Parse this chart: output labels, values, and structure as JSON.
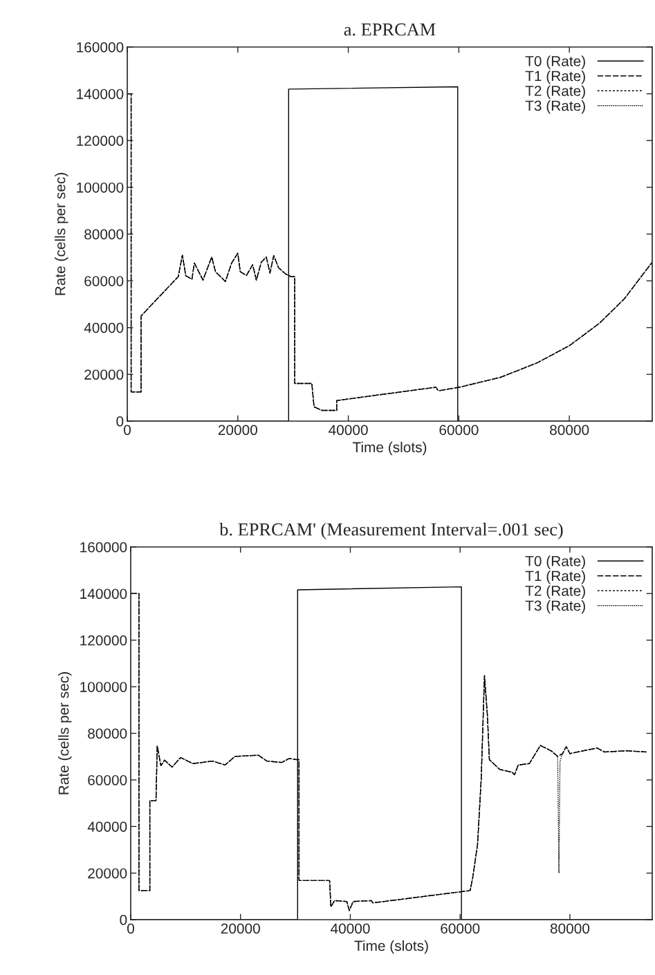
{
  "chart_data": [
    {
      "type": "line",
      "title": "a. EPRCAM",
      "xlabel": "Time (slots)",
      "ylabel": "Rate (cells per sec)",
      "xlim": [
        0,
        95000
      ],
      "ylim": [
        0,
        160000
      ],
      "xticks": [
        0,
        20000,
        40000,
        60000,
        80000
      ],
      "yticks": [
        0,
        20000,
        40000,
        60000,
        80000,
        100000,
        120000,
        140000,
        160000
      ],
      "legend": "top right",
      "grid": false,
      "series": [
        {
          "name": "T0 (Rate)",
          "color": "#000000",
          "line_style": "solid",
          "x": [
            0,
            29200,
            29200,
            59800,
            59800,
            95000
          ],
          "values": [
            0,
            0,
            142000,
            143000,
            0,
            0
          ]
        },
        {
          "name": "T1 (Rate)",
          "color": "#000000",
          "line_style": "dashed",
          "x": [
            0,
            700,
            700,
            2500,
            2500,
            9230,
            9980,
            10580,
            11700,
            12150,
            13700,
            15290,
            15960,
            17760,
            18880,
            20000,
            20450,
            21570,
            22690,
            23360,
            24260,
            25160,
            25830,
            26500,
            27400,
            28750,
            29650,
            30300,
            30300,
            33400,
            33800,
            35200,
            37900,
            37900,
            55850,
            56300,
            60100,
            67510,
            74250,
            80080,
            85470,
            89950,
            95000
          ],
          "values": [
            140000,
            140000,
            12500,
            12500,
            45000,
            61800,
            71000,
            62200,
            60700,
            67600,
            60300,
            70200,
            63900,
            59700,
            67600,
            71800,
            63900,
            62300,
            66900,
            60300,
            68000,
            70200,
            63300,
            70800,
            65500,
            62800,
            61800,
            61800,
            16100,
            16100,
            6100,
            4600,
            4600,
            8800,
            14500,
            13000,
            14500,
            18700,
            25000,
            32400,
            41900,
            52300,
            68000
          ]
        },
        {
          "name": "T2 (Rate)",
          "color": "#000000",
          "line_style": "dotted",
          "x": [
            0,
            700,
            700,
            2500,
            2500,
            9230,
            9980,
            10580,
            11700,
            12150,
            13700,
            15290,
            15960,
            17760,
            18880,
            20000,
            20450,
            21570,
            22690,
            23360,
            24260,
            25160,
            25830,
            26500,
            27400,
            28750,
            29650,
            30300,
            30300,
            33400,
            33800,
            35200,
            37900,
            37900,
            55850,
            56300,
            60100,
            67510,
            74250,
            80080,
            85470,
            89950,
            95000
          ],
          "values": [
            140000,
            140000,
            12500,
            12500,
            45000,
            61800,
            71000,
            62200,
            60700,
            67600,
            60300,
            70200,
            63900,
            59700,
            67600,
            71800,
            63900,
            62300,
            66900,
            60300,
            68000,
            70200,
            63300,
            70800,
            65500,
            62800,
            61800,
            61800,
            16100,
            16100,
            6100,
            4600,
            4600,
            8800,
            14500,
            13000,
            14500,
            18700,
            25000,
            32400,
            41900,
            52300,
            68000
          ]
        },
        {
          "name": "T3 (Rate)",
          "color": "#000000",
          "line_style": "densely dotted",
          "x": [
            0,
            700,
            700,
            2500,
            2500,
            9230,
            9980,
            10580,
            11700,
            12150,
            13700,
            15290,
            15960,
            17760,
            18880,
            20000,
            20450,
            21570,
            22690,
            23360,
            24260,
            25160,
            25830,
            26500,
            27400,
            28750,
            29650,
            30300,
            30300,
            33400,
            33800,
            35200,
            37900,
            37900,
            55850,
            56300,
            60100,
            67510,
            74250,
            80080,
            85470,
            89950,
            95000
          ],
          "values": [
            140000,
            140000,
            12500,
            12500,
            45000,
            61800,
            71000,
            62200,
            60700,
            67600,
            60300,
            70200,
            63900,
            59700,
            67600,
            71800,
            63900,
            62300,
            66900,
            60300,
            68000,
            70200,
            63300,
            70800,
            65500,
            62800,
            61800,
            61800,
            16100,
            16100,
            6100,
            4600,
            4600,
            8800,
            14500,
            13000,
            14500,
            18700,
            25000,
            32400,
            41900,
            52300,
            68000
          ]
        }
      ]
    },
    {
      "type": "line",
      "title": "b. EPRCAM' (Measurement Interval=.001 sec)",
      "xlabel": "Time (slots)",
      "ylabel": "Rate (cells per sec)",
      "xlim": [
        0,
        95000
      ],
      "ylim": [
        0,
        160000
      ],
      "xticks": [
        0,
        20000,
        40000,
        60000,
        80000
      ],
      "yticks": [
        0,
        20000,
        40000,
        60000,
        80000,
        100000,
        120000,
        140000,
        160000
      ],
      "legend": "top right",
      "grid": false,
      "series": [
        {
          "name": "T0 (Rate)",
          "color": "#000000",
          "line_style": "solid",
          "x": [
            0,
            30400,
            30400,
            60250,
            60250,
            95000
          ],
          "values": [
            0,
            0,
            141600,
            142900,
            0,
            0
          ]
        },
        {
          "name": "T1 (Rate)",
          "color": "#000000",
          "line_style": "dashed",
          "x": [
            0,
            1500,
            1500,
            3480,
            3480,
            4600,
            4830,
            5500,
            6170,
            7520,
            9090,
            11340,
            14930,
            17180,
            19000,
            23240,
            24800,
            27510,
            28860,
            30210,
            30660,
            30660,
            36230,
            36460,
            37130,
            39370,
            39820,
            40500,
            43860,
            44080,
            61830,
            62290,
            63180,
            63850,
            64440,
            64980,
            65330,
            67220,
            69470,
            69920,
            70590,
            72610,
            74630,
            76650,
            77770,
            78660,
            79330,
            80000,
            84940,
            86290,
            90330,
            93920
          ],
          "values": [
            140000,
            140000,
            12500,
            12500,
            51100,
            51100,
            74600,
            66100,
            68500,
            65500,
            69600,
            67000,
            68100,
            66400,
            70100,
            70600,
            68100,
            67500,
            69200,
            68700,
            68700,
            16800,
            16800,
            5500,
            8200,
            7800,
            3900,
            7800,
            8200,
            7200,
            12500,
            17900,
            32300,
            60700,
            104700,
            87500,
            68700,
            64500,
            63300,
            62200,
            66400,
            67000,
            74800,
            72400,
            70100,
            71300,
            74300,
            71300,
            73700,
            72000,
            72500,
            72000
          ]
        },
        {
          "name": "T2 (Rate)",
          "color": "#000000",
          "line_style": "dotted",
          "x": [
            0,
            1500,
            1500,
            3480,
            3480,
            4600,
            4830,
            5500,
            6170,
            7520,
            9090,
            11340,
            14930,
            17180,
            19000,
            23240,
            24800,
            27510,
            28860,
            30210,
            30660,
            30660,
            36230,
            36460,
            37130,
            39370,
            39820,
            40500,
            43860,
            44080,
            61830,
            62290,
            63180,
            63850,
            64440,
            64980,
            65330,
            67220,
            69470,
            69920,
            70590,
            72610,
            74630,
            76650,
            77770,
            78660,
            79330,
            80000,
            84940,
            86290,
            90330,
            93920
          ],
          "values": [
            140000,
            140000,
            12500,
            12500,
            51100,
            51100,
            74600,
            66100,
            68500,
            65500,
            69600,
            67000,
            68100,
            66400,
            70100,
            70600,
            68100,
            67500,
            69200,
            68700,
            68700,
            16800,
            16800,
            5500,
            8200,
            7800,
            3900,
            7800,
            8200,
            7200,
            12500,
            17900,
            32300,
            60700,
            104700,
            87500,
            68700,
            64500,
            63300,
            62200,
            66400,
            67000,
            74800,
            72400,
            70100,
            71300,
            74300,
            71300,
            73700,
            72000,
            72500,
            72000
          ]
        },
        {
          "name": "T3 (Rate)",
          "color": "#000000",
          "line_style": "densely dotted",
          "x": [
            0,
            1500,
            1500,
            3480,
            3480,
            4600,
            4830,
            5500,
            6170,
            7520,
            9090,
            11340,
            14930,
            17180,
            19000,
            23240,
            24800,
            27510,
            28860,
            30210,
            30660,
            30660,
            36230,
            36460,
            37130,
            39370,
            39820,
            40500,
            43860,
            44080,
            61830,
            62290,
            63180,
            63850,
            64440,
            64980,
            65330,
            67220,
            69470,
            69920,
            70590,
            72610,
            74630,
            76650,
            77770,
            78000,
            78200,
            78660,
            79330,
            80000,
            84940,
            86290,
            90330,
            93920
          ],
          "values": [
            140000,
            140000,
            12500,
            12500,
            51100,
            51100,
            74600,
            66100,
            68500,
            65500,
            69600,
            67000,
            68100,
            66400,
            70100,
            70600,
            68100,
            67500,
            69200,
            68700,
            68700,
            16800,
            16800,
            5500,
            8200,
            7800,
            3900,
            7800,
            8200,
            7200,
            12500,
            17900,
            32300,
            60700,
            104700,
            87500,
            68700,
            64500,
            63300,
            62200,
            66400,
            67000,
            74800,
            72400,
            70100,
            20000,
            68000,
            71300,
            74300,
            71300,
            73700,
            72000,
            72500,
            72000
          ]
        }
      ]
    }
  ]
}
